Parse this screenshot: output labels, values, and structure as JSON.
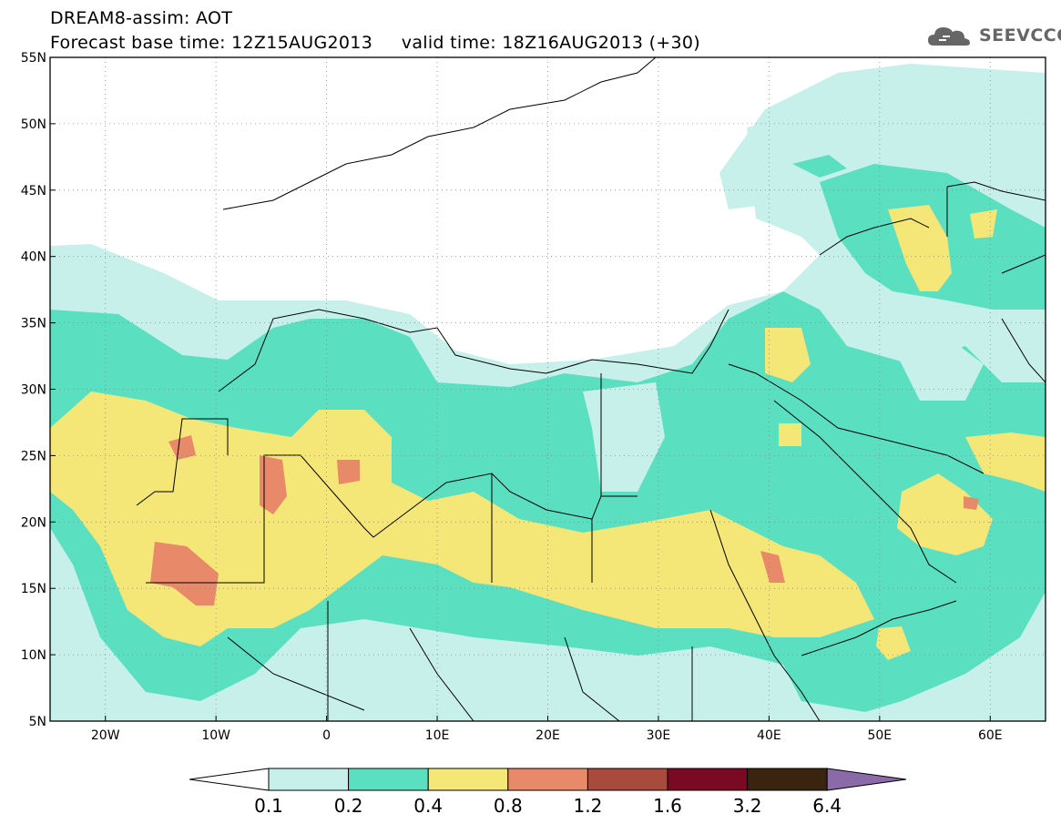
{
  "header": {
    "line1": "DREAM8-assim: AOT",
    "line2": "Forecast base time: 12Z15AUG2013     valid time: 18Z16AUG2013 (+30)"
  },
  "logo": {
    "text": "SEEVCCC",
    "icon": "cloud-icon"
  },
  "map": {
    "lon_range": [
      -25,
      65
    ],
    "lat_range": [
      5,
      55
    ],
    "lon_ticks": [
      "20W",
      "10W",
      "0",
      "10E",
      "20E",
      "30E",
      "40E",
      "50E",
      "60E"
    ],
    "lat_ticks": [
      "55N",
      "50N",
      "45N",
      "40N",
      "35N",
      "30N",
      "25N",
      "20N",
      "15N",
      "10N",
      "5N"
    ],
    "grid": true
  },
  "colorbar": {
    "labels": [
      "0.1",
      "0.2",
      "0.4",
      "0.8",
      "1.2",
      "1.6",
      "3.2",
      "6.4"
    ],
    "colors": [
      "#ffffff",
      "#c8f0ea",
      "#5ae0c0",
      "#f5e678",
      "#e8896a",
      "#a84a3c",
      "#7a0a24",
      "#3a2410",
      "#8a6aa8"
    ]
  }
}
